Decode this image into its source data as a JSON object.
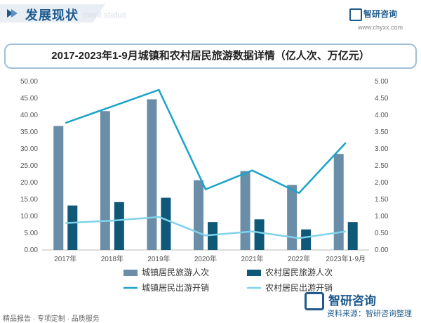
{
  "header": {
    "title": "发展现状",
    "subtitle": "ment status",
    "brand": "智研咨询",
    "url": "www.chyxx.com"
  },
  "chart_title": "2017-2023年1-9月城镇和农村居民旅游数据详情（亿人次、万亿元）",
  "footer": {
    "left_text": "精品报告 · 专项定制 · 品质服务",
    "brand": "智研咨询",
    "source": "资料来源：智研咨询整理"
  },
  "colors": {
    "bar_urban": "#6a8ea8",
    "bar_rural": "#0f5878",
    "line_urban": "#1aa3c8",
    "line_rural": "#7fd3ea"
  },
  "chart_data": {
    "type": "bar",
    "categories": [
      "2017年",
      "2018年",
      "2019年",
      "2020年",
      "2021年",
      "2022年",
      "2023年1-9月"
    ],
    "left_axis": {
      "ylim": [
        0,
        50
      ],
      "ticks": [
        "0.00",
        "5.00",
        "10.00",
        "15.00",
        "20.00",
        "25.00",
        "30.00",
        "35.00",
        "40.00",
        "45.00",
        "50.00"
      ]
    },
    "right_axis": {
      "ylim": [
        0,
        5
      ],
      "ticks": [
        "0.00",
        "0.50",
        "1.00",
        "1.50",
        "2.00",
        "2.50",
        "3.00",
        "3.50",
        "4.00",
        "4.50",
        "5.00"
      ]
    },
    "series": [
      {
        "name": "城镇居民旅游人次",
        "type": "bar",
        "axis": "left",
        "values": [
          36.8,
          41.2,
          44.7,
          20.7,
          23.4,
          19.3,
          28.5
        ]
      },
      {
        "name": "农村居民旅游人次",
        "type": "bar",
        "axis": "left",
        "values": [
          13.2,
          14.2,
          15.5,
          8.3,
          9.1,
          6.1,
          8.3
        ]
      },
      {
        "name": "城镇居民出游开销",
        "type": "line",
        "axis": "right",
        "values": [
          3.77,
          4.26,
          4.75,
          1.8,
          2.36,
          1.69,
          3.18
        ]
      },
      {
        "name": "农村居民出游开销",
        "type": "line",
        "axis": "right",
        "values": [
          0.8,
          0.87,
          0.98,
          0.43,
          0.55,
          0.35,
          0.55
        ]
      }
    ],
    "legend": "bottom",
    "grid": false
  }
}
